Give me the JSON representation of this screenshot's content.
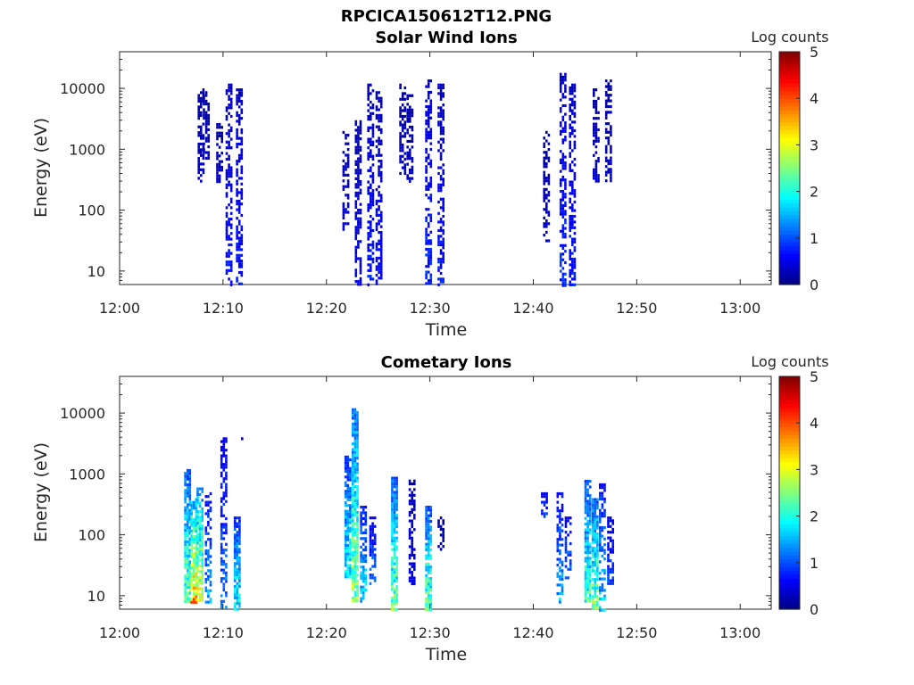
{
  "figure_title": "RPCICA150612T12.PNG",
  "chart_data": [
    {
      "type": "heatmap",
      "title": "Solar Wind Ions",
      "xlabel": "Time",
      "ylabel": "Energy (eV)",
      "y_scale": "log",
      "ylim": [
        6,
        40000
      ],
      "xlim": [
        "12:00",
        "13:03"
      ],
      "x_ticks": [
        "12:00",
        "12:10",
        "12:20",
        "12:30",
        "12:40",
        "12:50",
        "13:00"
      ],
      "y_ticks": [
        "10",
        "100",
        "1000",
        "10000"
      ],
      "colorbar": {
        "label": "Log counts",
        "range": [
          0,
          5
        ],
        "ticks": [
          "0",
          "1",
          "2",
          "3",
          "4",
          "5"
        ],
        "colormap": "jet"
      },
      "grid": false,
      "columns": [
        {
          "t": 7.8,
          "e_min": 300,
          "e_max": 10000,
          "level": 0.3
        },
        {
          "t": 8.3,
          "e_min": 700,
          "e_max": 9000,
          "level": 0.3
        },
        {
          "t": 9.6,
          "e_min": 300,
          "e_max": 3000,
          "level": 0.3
        },
        {
          "t": 10.5,
          "e_min": 6,
          "e_max": 12000,
          "level": 0.6
        },
        {
          "t": 11.5,
          "e_min": 6,
          "e_max": 10000,
          "level": 0.6
        },
        {
          "t": 21.8,
          "e_min": 50,
          "e_max": 2000,
          "level": 0.4
        },
        {
          "t": 23.0,
          "e_min": 6,
          "e_max": 3000,
          "level": 0.4
        },
        {
          "t": 24.2,
          "e_min": 6,
          "e_max": 12000,
          "level": 0.6
        },
        {
          "t": 25.0,
          "e_min": 6,
          "e_max": 9000,
          "level": 0.5
        },
        {
          "t": 27.3,
          "e_min": 400,
          "e_max": 12000,
          "level": 0.3
        },
        {
          "t": 28.0,
          "e_min": 300,
          "e_max": 8000,
          "level": 0.3
        },
        {
          "t": 29.8,
          "e_min": 6,
          "e_max": 14000,
          "level": 0.7
        },
        {
          "t": 31.0,
          "e_min": 6,
          "e_max": 12000,
          "level": 0.6
        },
        {
          "t": 41.2,
          "e_min": 30,
          "e_max": 2000,
          "level": 0.3
        },
        {
          "t": 42.8,
          "e_min": 6,
          "e_max": 18000,
          "level": 0.7
        },
        {
          "t": 43.7,
          "e_min": 6,
          "e_max": 12000,
          "level": 0.6
        },
        {
          "t": 46.0,
          "e_min": 300,
          "e_max": 10000,
          "level": 0.3
        },
        {
          "t": 47.2,
          "e_min": 300,
          "e_max": 14000,
          "level": 0.3
        }
      ]
    },
    {
      "type": "heatmap",
      "title": "Cometary Ions",
      "xlabel": "Time",
      "ylabel": "Energy (eV)",
      "y_scale": "log",
      "ylim": [
        6,
        40000
      ],
      "xlim": [
        "12:00",
        "13:03"
      ],
      "x_ticks": [
        "12:00",
        "12:10",
        "12:20",
        "12:30",
        "12:40",
        "12:50",
        "13:00"
      ],
      "y_ticks": [
        "10",
        "100",
        "1000",
        "10000"
      ],
      "colorbar": {
        "label": "Log counts",
        "range": [
          0,
          5
        ],
        "ticks": [
          "0",
          "1",
          "2",
          "3",
          "4",
          "5"
        ],
        "colormap": "jet"
      },
      "grid": false,
      "columns": [
        {
          "t": 6.5,
          "e_min": 8,
          "e_max": 1200,
          "level": 2.0
        },
        {
          "t": 7.1,
          "e_min": 8,
          "e_max": 400,
          "level": 2.9
        },
        {
          "t": 7.7,
          "e_min": 8,
          "e_max": 600,
          "level": 2.5
        },
        {
          "t": 8.5,
          "e_min": 8,
          "e_max": 500,
          "level": 1.2
        },
        {
          "t": 10.0,
          "e_min": 6,
          "e_max": 4000,
          "level": 1.0
        },
        {
          "t": 11.3,
          "e_min": 6,
          "e_max": 200,
          "level": 1.6
        },
        {
          "t": 12.0,
          "e_min": 3500,
          "e_max": 4000,
          "level": 0.3
        },
        {
          "t": 22.0,
          "e_min": 20,
          "e_max": 2000,
          "level": 1.6
        },
        {
          "t": 22.7,
          "e_min": 8,
          "e_max": 12000,
          "level": 2.2
        },
        {
          "t": 23.5,
          "e_min": 8,
          "e_max": 300,
          "level": 1.4
        },
        {
          "t": 24.4,
          "e_min": 15,
          "e_max": 200,
          "level": 1.0
        },
        {
          "t": 26.5,
          "e_min": 6,
          "e_max": 900,
          "level": 2.0
        },
        {
          "t": 28.2,
          "e_min": 15,
          "e_max": 900,
          "level": 0.4
        },
        {
          "t": 29.8,
          "e_min": 6,
          "e_max": 300,
          "level": 2.0
        },
        {
          "t": 31.0,
          "e_min": 60,
          "e_max": 200,
          "level": 0.3
        },
        {
          "t": 41.0,
          "e_min": 200,
          "e_max": 500,
          "level": 0.8
        },
        {
          "t": 42.5,
          "e_min": 8,
          "e_max": 500,
          "level": 1.2
        },
        {
          "t": 43.3,
          "e_min": 20,
          "e_max": 200,
          "level": 1.0
        },
        {
          "t": 45.2,
          "e_min": 8,
          "e_max": 800,
          "level": 1.8
        },
        {
          "t": 45.9,
          "e_min": 6,
          "e_max": 400,
          "level": 2.1
        },
        {
          "t": 46.6,
          "e_min": 6,
          "e_max": 700,
          "level": 1.3
        },
        {
          "t": 47.4,
          "e_min": 15,
          "e_max": 200,
          "level": 0.8
        }
      ]
    }
  ]
}
